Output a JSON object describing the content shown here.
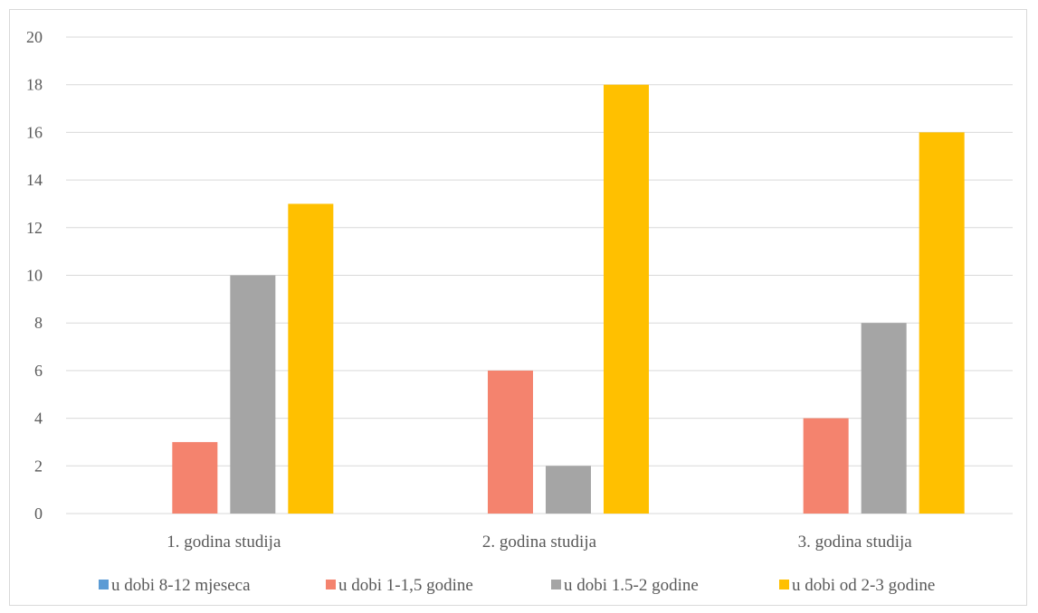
{
  "chart_data": {
    "type": "bar",
    "title": "",
    "xlabel": "",
    "ylabel": "",
    "categories": [
      "1. godina studija",
      "2. godina studija",
      "3. godina studija"
    ],
    "series": [
      {
        "name": "u dobi 8-12 mjeseca",
        "color": "#5b9bd5",
        "values": [
          0,
          0,
          0
        ]
      },
      {
        "name": "u dobi 1-1,5 godine",
        "color": "#f4836e",
        "values": [
          3,
          6,
          4
        ]
      },
      {
        "name": "u dobi 1.5-2 godine",
        "color": "#a5a5a5",
        "values": [
          10,
          2,
          8
        ]
      },
      {
        "name": "u dobi od 2-3 godine",
        "color": "#ffc000",
        "values": [
          13,
          18,
          16
        ]
      }
    ],
    "ylim": [
      0,
      20
    ],
    "yticks": [
      "0",
      "2",
      "4",
      "6",
      "8",
      "10",
      "12",
      "14",
      "16",
      "18",
      "20"
    ],
    "grid": true,
    "legend_position": "bottom"
  }
}
